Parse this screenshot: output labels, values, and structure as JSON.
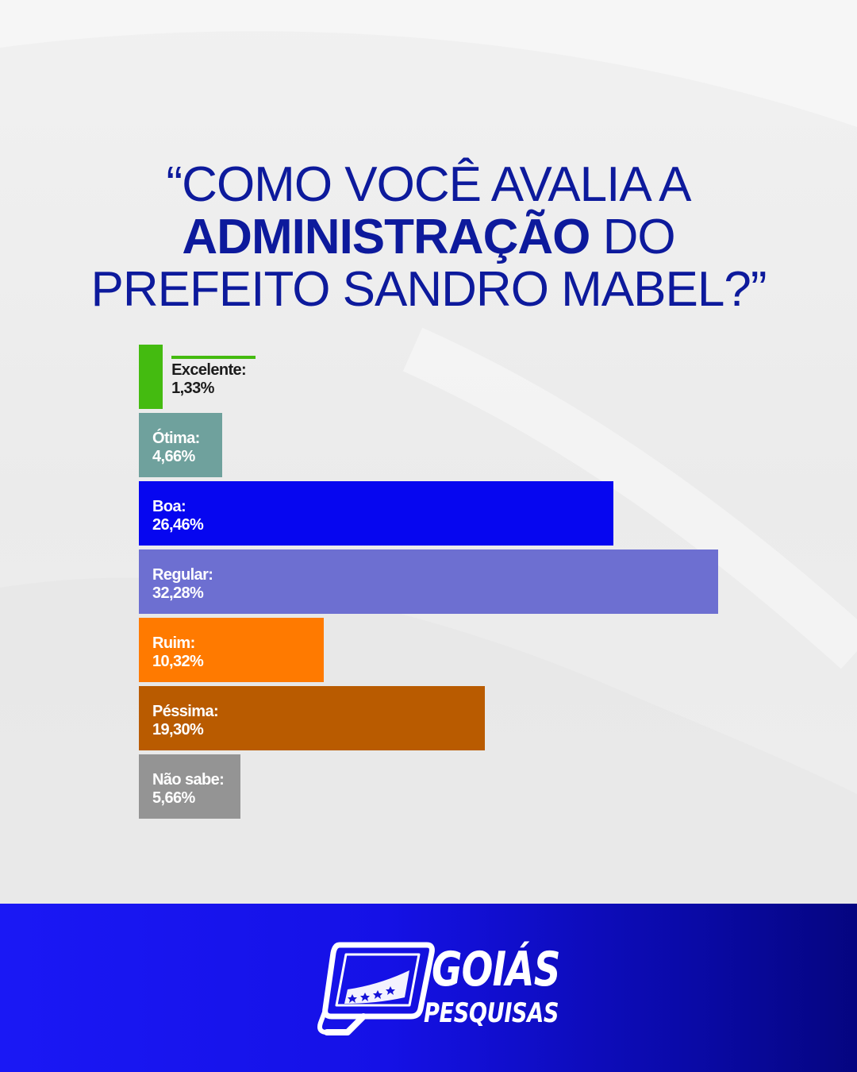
{
  "title": {
    "line1": "“COMO VOCÊ AVALIA A",
    "line2_strong": "ADMINISTRAÇÃO",
    "line2_rest": " DO",
    "line3": "PREFEITO SANDRO MABEL?”"
  },
  "chart_data": {
    "type": "bar",
    "orientation": "horizontal",
    "title": "“COMO VOCÊ AVALIA A ADMINISTRAÇÃO DO PREFEITO SANDRO MABEL?”",
    "xlabel": "",
    "ylabel": "",
    "unit": "%",
    "xlim": [
      0,
      32.28
    ],
    "grid": false,
    "categories": [
      "Excelente:",
      "Ótima:",
      "Boa:",
      "Regular:",
      "Ruim:",
      "Péssima:",
      "Não sabe:"
    ],
    "values": [
      1.33,
      4.66,
      26.46,
      32.28,
      10.32,
      19.3,
      5.66
    ],
    "value_labels": [
      "1,33%",
      "4,66%",
      "26,46%",
      "32,28%",
      "10,32%",
      "19,30%",
      "5,66%"
    ],
    "colors": [
      "#44bb10",
      "#6fa19d",
      "#0606f0",
      "#6d6fd1",
      "#ff7a00",
      "#b95b00",
      "#949494"
    ]
  },
  "brand": {
    "name_line1": "GOIÁS",
    "name_line2": "PESQUISAS",
    "logo_icon": "magnifier-q-icon",
    "footer_color_left": "#1a18f5",
    "footer_color_right": "#050580"
  }
}
